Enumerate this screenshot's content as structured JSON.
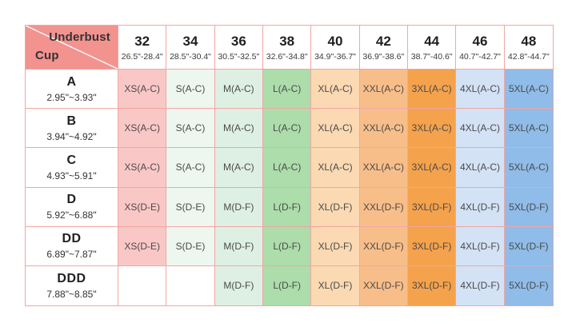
{
  "chart_data": {
    "type": "table",
    "corner": {
      "top_label": "Underbust",
      "bottom_label": "Cup"
    },
    "columns": [
      {
        "size": "32",
        "range": "26.5\"-28.4\"",
        "fill": "#F9C8C6"
      },
      {
        "size": "34",
        "range": "28.5\"-30.4\"",
        "fill": "#EDF6EF"
      },
      {
        "size": "36",
        "range": "30.5\"-32.5\"",
        "fill": "#DEF0E3"
      },
      {
        "size": "38",
        "range": "32.6\"-34.8\"",
        "fill": "#ACDDAB"
      },
      {
        "size": "40",
        "range": "34.9\"-36.7\"",
        "fill": "#FBD9B2"
      },
      {
        "size": "42",
        "range": "36.9\"-38.6\"",
        "fill": "#F8BE8A"
      },
      {
        "size": "44",
        "range": "38.7\"-40.6\"",
        "fill": "#F5A24C"
      },
      {
        "size": "46",
        "range": "40.7\"-42.7\"",
        "fill": "#D3E2F5"
      },
      {
        "size": "48",
        "range": "42.8\"-44.7\"",
        "fill": "#8FBCE8"
      }
    ],
    "rows": [
      {
        "cup": "A",
        "range": "2.95\"~3.93\"",
        "cells": [
          "XS(A-C)",
          "S(A-C)",
          "M(A-C)",
          "L(A-C)",
          "XL(A-C)",
          "XXL(A-C)",
          "3XL(A-C)",
          "4XL(A-C)",
          "5XL(A-C)"
        ]
      },
      {
        "cup": "B",
        "range": "3.94\"~4.92\"",
        "cells": [
          "XS(A-C)",
          "S(A-C)",
          "M(A-C)",
          "L(A-C)",
          "XL(A-C)",
          "XXL(A-C)",
          "3XL(A-C)",
          "4XL(A-C)",
          "5XL(A-C)"
        ]
      },
      {
        "cup": "C",
        "range": "4.93\"~5.91\"",
        "cells": [
          "XS(A-C)",
          "S(A-C)",
          "M(A-C)",
          "L(A-C)",
          "XL(A-C)",
          "XXL(A-C)",
          "3XL(A-C)",
          "4XL(A-C)",
          "5XL(A-C)"
        ]
      },
      {
        "cup": "D",
        "range": "5.92\"~6.88\"",
        "cells": [
          "XS(D-E)",
          "S(D-E)",
          "M(D-F)",
          "L(D-F)",
          "XL(D-F)",
          "XXL(D-F)",
          "3XL(D-F)",
          "4XL(D-F)",
          "5XL(D-F)"
        ]
      },
      {
        "cup": "DD",
        "range": "6.89\"~7.87\"",
        "cells": [
          "XS(D-E)",
          "S(D-E)",
          "M(D-F)",
          "L(D-F)",
          "XL(D-F)",
          "XXL(D-F)",
          "3XL(D-F)",
          "4XL(D-F)",
          "5XL(D-F)"
        ]
      },
      {
        "cup": "DDD",
        "range": "7.88\"~8.85\"",
        "cells": [
          "",
          "",
          "M(D-F)",
          "L(D-F)",
          "XL(D-F)",
          "XXL(D-F)",
          "3XL(D-F)",
          "4XL(D-F)",
          "5XL(D-F)"
        ]
      }
    ],
    "colors": {
      "header_bg": "#F2938F",
      "border": "#F2A6A3",
      "header_text": "#333333",
      "number_text": "#1F1F1F",
      "cell_text": "#4A4A4A",
      "empty_cell_bg": "#FFFFFF",
      "diagonal_line": "#FFFFFF"
    }
  }
}
